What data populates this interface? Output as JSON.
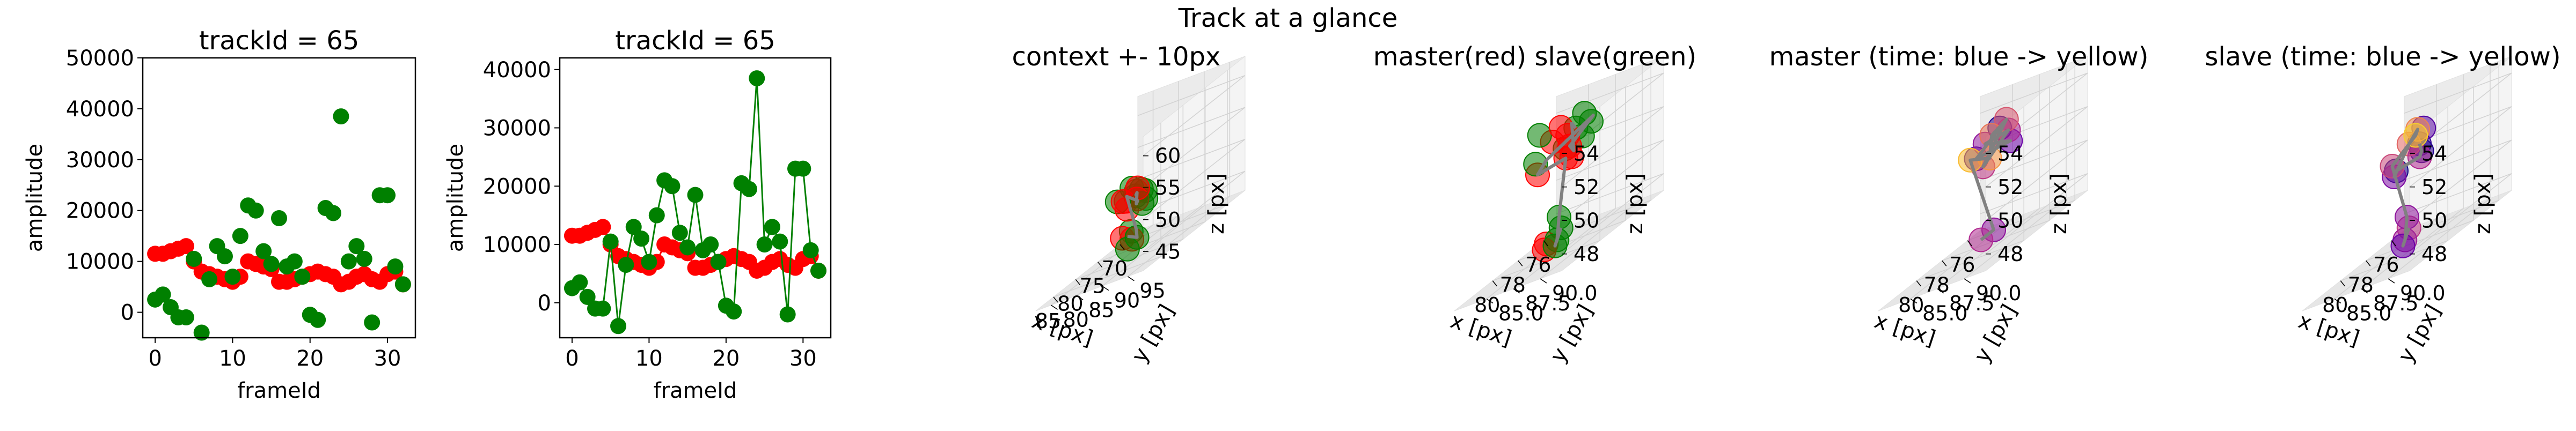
{
  "figure": {
    "suptitle": "Track at a glance"
  },
  "colors": {
    "master": "#ff0000",
    "slave": "#008000",
    "track_line": "#808080",
    "grid": "#d0d0d0",
    "pane": "#f2f2f2"
  },
  "chart_data": [
    {
      "type": "scatter",
      "title": "trackId = 65",
      "xlabel": "frameId",
      "ylabel": "amplitude",
      "xlim": [
        -1.6,
        33.6
      ],
      "ylim": [
        -5000,
        50000
      ],
      "xticks": [
        0,
        10,
        20,
        30
      ],
      "yticks": [
        0,
        10000,
        20000,
        30000,
        40000,
        50000
      ],
      "x": [
        0,
        1,
        2,
        3,
        4,
        5,
        6,
        7,
        8,
        9,
        10,
        11,
        12,
        13,
        14,
        15,
        16,
        17,
        18,
        19,
        20,
        21,
        22,
        23,
        24,
        25,
        26,
        27,
        28,
        29,
        30,
        31,
        32
      ],
      "series": [
        {
          "color": "#ff0000",
          "line": false,
          "values": [
            11500,
            11500,
            12000,
            12500,
            13000,
            10000,
            8000,
            7500,
            7000,
            6500,
            6000,
            7000,
            10000,
            9500,
            9000,
            8500,
            6000,
            6000,
            6500,
            7000,
            7500,
            8000,
            7500,
            7000,
            5500,
            6000,
            7000,
            7500,
            6500,
            6000,
            7500,
            8000,
            5500
          ]
        },
        {
          "color": "#008000",
          "line": false,
          "values": [
            2500,
            3500,
            1000,
            -1000,
            -1000,
            10500,
            -4000,
            6500,
            13000,
            11000,
            7000,
            15000,
            21000,
            20000,
            12000,
            9500,
            18500,
            9000,
            10000,
            7000,
            -500,
            -1500,
            20500,
            19500,
            38500,
            10000,
            13000,
            10500,
            -2000,
            23000,
            23000,
            9000,
            5500
          ]
        }
      ]
    },
    {
      "type": "line",
      "title": "trackId = 65",
      "xlabel": "frameId",
      "ylabel": "amplitude",
      "xlim": [
        -1.6,
        33.6
      ],
      "ylim": [
        -6000,
        42000
      ],
      "xticks": [
        0,
        10,
        20,
        30
      ],
      "yticks": [
        0,
        10000,
        20000,
        30000,
        40000
      ],
      "x": [
        0,
        1,
        2,
        3,
        4,
        5,
        6,
        7,
        8,
        9,
        10,
        11,
        12,
        13,
        14,
        15,
        16,
        17,
        18,
        19,
        20,
        21,
        22,
        23,
        24,
        25,
        26,
        27,
        28,
        29,
        30,
        31,
        32
      ],
      "series": [
        {
          "color": "#ff0000",
          "line": true,
          "values": [
            11500,
            11500,
            12000,
            12500,
            13000,
            10000,
            8000,
            7500,
            7000,
            6500,
            6000,
            7000,
            10000,
            9500,
            9000,
            8500,
            6000,
            6000,
            6500,
            7000,
            7500,
            8000,
            7500,
            7000,
            5500,
            6000,
            7000,
            7500,
            6500,
            6000,
            7500,
            8000,
            5500
          ]
        },
        {
          "color": "#008000",
          "line": true,
          "values": [
            2500,
            3500,
            1000,
            -1000,
            -1000,
            10500,
            -4000,
            6500,
            13000,
            11000,
            7000,
            15000,
            21000,
            20000,
            12000,
            9500,
            18500,
            9000,
            10000,
            7000,
            -500,
            -1500,
            20500,
            19500,
            38500,
            10000,
            13000,
            10500,
            -2000,
            23000,
            23000,
            9000,
            5500
          ]
        }
      ]
    },
    {
      "type": "scatter3d",
      "title": "context +- 10px",
      "xlabel": "x [px]",
      "ylabel": "y [px]",
      "zlabel": "z [px]",
      "xlim": [
        66,
        89
      ],
      "ylim": [
        77,
        98
      ],
      "zlim": [
        42,
        63
      ],
      "xticks": [
        "70",
        "75",
        "80",
        "85"
      ],
      "xtick_values": [
        70,
        75,
        80,
        85
      ],
      "yticks": [
        "80",
        "85",
        "90",
        "95"
      ],
      "ytick_values": [
        80,
        85,
        90,
        95
      ],
      "zticks": [
        "45",
        "50",
        "55",
        "60"
      ],
      "ztick_values": [
        45,
        50,
        55,
        60
      ],
      "points": [
        {
          "x": 79,
          "y": 88,
          "z": 52,
          "c": "#ff0000"
        },
        {
          "x": 80,
          "y": 89,
          "z": 51,
          "c": "#ff0000"
        },
        {
          "x": 81,
          "y": 90,
          "z": 53,
          "c": "#ff0000"
        },
        {
          "x": 80,
          "y": 87,
          "z": 50,
          "c": "#ff0000"
        },
        {
          "x": 82,
          "y": 88,
          "z": 52,
          "c": "#ff0000"
        },
        {
          "x": 79,
          "y": 86,
          "z": 51,
          "c": "#ff0000"
        },
        {
          "x": 81,
          "y": 87,
          "z": 46,
          "c": "#ff0000"
        },
        {
          "x": 80,
          "y": 88,
          "z": 45,
          "c": "#ff0000"
        },
        {
          "x": 78,
          "y": 87,
          "z": 51,
          "c": "#008000"
        },
        {
          "x": 79,
          "y": 89,
          "z": 52,
          "c": "#008000"
        },
        {
          "x": 80,
          "y": 90,
          "z": 50,
          "c": "#008000"
        },
        {
          "x": 77,
          "y": 88,
          "z": 51,
          "c": "#008000"
        },
        {
          "x": 81,
          "y": 86,
          "z": 52,
          "c": "#008000"
        },
        {
          "x": 80,
          "y": 88,
          "z": 53,
          "c": "#008000"
        },
        {
          "x": 79,
          "y": 87,
          "z": 46,
          "c": "#008000"
        },
        {
          "x": 80,
          "y": 89,
          "z": 45,
          "c": "#008000"
        },
        {
          "x": 81,
          "y": 88,
          "z": 44,
          "c": "#008000"
        },
        {
          "x": 78,
          "y": 89,
          "z": 50,
          "c": "#008000"
        }
      ],
      "path": [
        [
          78,
          87,
          51
        ],
        [
          80,
          89,
          52
        ],
        [
          79,
          88,
          50
        ],
        [
          81,
          90,
          51
        ],
        [
          80,
          87,
          52
        ],
        [
          79,
          88,
          46
        ],
        [
          80,
          89,
          45
        ],
        [
          81,
          88,
          46
        ]
      ]
    },
    {
      "type": "scatter3d",
      "title": "master(red) slave(green)",
      "xlabel": "x [px]",
      "ylabel": "y [px]",
      "zlabel": "z [px]",
      "xlim": [
        75,
        83
      ],
      "ylim": [
        82,
        92
      ],
      "zlim": [
        47,
        55
      ],
      "xticks": [
        "76",
        "78",
        "80"
      ],
      "xtick_values": [
        76,
        78,
        80
      ],
      "yticks": [
        "85.0",
        "87.5",
        "90.0"
      ],
      "ytick_values": [
        85,
        87.5,
        90
      ],
      "zticks": [
        "48",
        "50",
        "52",
        "54"
      ],
      "ztick_values": [
        48,
        50,
        52,
        54
      ],
      "points": [
        {
          "x": 77,
          "y": 84,
          "z": 53,
          "c": "#ff0000"
        },
        {
          "x": 78,
          "y": 86,
          "z": 54,
          "c": "#ff0000"
        },
        {
          "x": 79,
          "y": 88,
          "z": 53,
          "c": "#ff0000"
        },
        {
          "x": 80,
          "y": 89,
          "z": 54,
          "c": "#ff0000"
        },
        {
          "x": 78,
          "y": 87,
          "z": 52,
          "c": "#ff0000"
        },
        {
          "x": 81,
          "y": 90,
          "z": 53,
          "c": "#ff0000"
        },
        {
          "x": 79,
          "y": 85,
          "z": 52,
          "c": "#ff0000"
        },
        {
          "x": 80,
          "y": 87,
          "z": 48,
          "c": "#ff0000"
        },
        {
          "x": 81,
          "y": 88,
          "z": 48,
          "c": "#ff0000"
        },
        {
          "x": 76,
          "y": 85,
          "z": 53,
          "c": "#008000"
        },
        {
          "x": 77,
          "y": 87,
          "z": 54,
          "c": "#008000"
        },
        {
          "x": 78,
          "y": 88,
          "z": 53,
          "c": "#008000"
        },
        {
          "x": 79,
          "y": 90,
          "z": 54,
          "c": "#008000"
        },
        {
          "x": 76,
          "y": 84,
          "z": 52,
          "c": "#008000"
        },
        {
          "x": 80,
          "y": 86,
          "z": 53,
          "c": "#008000"
        },
        {
          "x": 78,
          "y": 84,
          "z": 54,
          "c": "#008000"
        },
        {
          "x": 79,
          "y": 87,
          "z": 49,
          "c": "#008000"
        },
        {
          "x": 80,
          "y": 88,
          "z": 48,
          "c": "#008000"
        },
        {
          "x": 81,
          "y": 89,
          "z": 48,
          "c": "#008000"
        },
        {
          "x": 78,
          "y": 86,
          "z": 48,
          "c": "#008000"
        }
      ],
      "path": [
        [
          76,
          85,
          53
        ],
        [
          78,
          87,
          54
        ],
        [
          77,
          86,
          52
        ],
        [
          79,
          88,
          53
        ],
        [
          78,
          89,
          54
        ],
        [
          80,
          87,
          53
        ],
        [
          79,
          85,
          52
        ],
        [
          81,
          90,
          53
        ],
        [
          79,
          87,
          49
        ],
        [
          80,
          88,
          48
        ],
        [
          81,
          89,
          48
        ],
        [
          78,
          86,
          48
        ]
      ]
    },
    {
      "type": "scatter3d",
      "title": "master (time: blue -> yellow)",
      "xlabel": "x [px]",
      "ylabel": "y [px]",
      "zlabel": "z [px]",
      "xlim": [
        75,
        83
      ],
      "ylim": [
        82,
        92
      ],
      "zlim": [
        47,
        55
      ],
      "xticks": [
        "76",
        "78",
        "80"
      ],
      "xtick_values": [
        76,
        78,
        80
      ],
      "yticks": [
        "85.0",
        "87.5",
        "90.0"
      ],
      "ytick_values": [
        85,
        87.5,
        90
      ],
      "zticks": [
        "48",
        "50",
        "52",
        "54"
      ],
      "ztick_values": [
        48,
        50,
        52,
        54
      ],
      "colormap": [
        "#0d0887",
        "#6a00a8",
        "#b12a90",
        "#e16462",
        "#fca636",
        "#f0f921"
      ],
      "points": [
        {
          "x": 76,
          "y": 85,
          "z": 53,
          "t": 0.05
        },
        {
          "x": 77,
          "y": 84,
          "z": 52,
          "t": 0.12
        },
        {
          "x": 76,
          "y": 86,
          "z": 52,
          "t": 0.2
        },
        {
          "x": 78,
          "y": 86,
          "z": 53,
          "t": 0.3
        },
        {
          "x": 77,
          "y": 87,
          "z": 53,
          "t": 0.38
        },
        {
          "x": 79,
          "y": 87,
          "z": 52,
          "t": 0.45
        },
        {
          "x": 78,
          "y": 88,
          "z": 54,
          "t": 0.55
        },
        {
          "x": 80,
          "y": 89,
          "z": 54,
          "t": 0.65
        },
        {
          "x": 81,
          "y": 90,
          "z": 53,
          "t": 0.75
        },
        {
          "x": 80,
          "y": 87,
          "z": 53,
          "t": 0.85
        },
        {
          "x": 79,
          "y": 88,
          "z": 48,
          "t": 0.3
        },
        {
          "x": 80,
          "y": 88,
          "z": 48,
          "t": 0.4
        }
      ],
      "path": [
        [
          76,
          85,
          53
        ],
        [
          77,
          84,
          52
        ],
        [
          76,
          86,
          52
        ],
        [
          78,
          86,
          53
        ],
        [
          77,
          87,
          53
        ],
        [
          79,
          87,
          52
        ],
        [
          78,
          88,
          54
        ],
        [
          80,
          89,
          54
        ],
        [
          81,
          90,
          53
        ],
        [
          80,
          87,
          53
        ],
        [
          79,
          88,
          48
        ],
        [
          80,
          88,
          48
        ]
      ]
    },
    {
      "type": "scatter3d",
      "title": "slave (time: blue -> yellow)",
      "xlabel": "x [px]",
      "ylabel": "y [px]",
      "zlabel": "z [px]",
      "xlim": [
        75,
        83
      ],
      "ylim": [
        82,
        92
      ],
      "zlim": [
        47,
        55
      ],
      "xticks": [
        "76",
        "78",
        "80"
      ],
      "xtick_values": [
        76,
        78,
        80
      ],
      "yticks": [
        "85.0",
        "87.5",
        "90.0"
      ],
      "ytick_values": [
        85,
        87.5,
        90
      ],
      "zticks": [
        "48",
        "50",
        "52",
        "54"
      ],
      "ztick_values": [
        48,
        50,
        52,
        54
      ],
      "colormap": [
        "#0d0887",
        "#6a00a8",
        "#b12a90",
        "#e16462",
        "#fca636",
        "#f0f921"
      ],
      "points": [
        {
          "x": 75.5,
          "y": 84,
          "z": 52,
          "t": 0.08
        },
        {
          "x": 76,
          "y": 85,
          "z": 53,
          "t": 0.15
        },
        {
          "x": 77,
          "y": 86,
          "z": 52,
          "t": 0.05
        },
        {
          "x": 78,
          "y": 86,
          "z": 53,
          "t": 0.6
        },
        {
          "x": 78,
          "y": 87,
          "z": 52,
          "t": 0.4
        },
        {
          "x": 79,
          "y": 88,
          "z": 54,
          "t": 0.7
        },
        {
          "x": 80,
          "y": 89,
          "z": 54,
          "t": 0.9
        },
        {
          "x": 79,
          "y": 86,
          "z": 52,
          "t": 0.02
        },
        {
          "x": 80,
          "y": 87,
          "z": 52,
          "t": 0.25
        },
        {
          "x": 81,
          "y": 88,
          "z": 53,
          "t": 0.5
        },
        {
          "x": 79,
          "y": 87,
          "z": 49,
          "t": 0.3
        },
        {
          "x": 80,
          "y": 88,
          "z": 48,
          "t": 0.35
        },
        {
          "x": 81,
          "y": 89,
          "z": 48,
          "t": 0.2
        },
        {
          "x": 78,
          "y": 86,
          "z": 48,
          "t": 0.45
        }
      ],
      "path": [
        [
          75.5,
          84,
          52
        ],
        [
          77,
          86,
          52
        ],
        [
          78,
          87,
          52
        ],
        [
          79,
          86,
          52
        ],
        [
          80,
          87,
          52
        ],
        [
          78,
          86,
          53
        ],
        [
          79,
          88,
          54
        ],
        [
          80,
          89,
          54
        ],
        [
          81,
          88,
          53
        ],
        [
          79,
          87,
          49
        ],
        [
          80,
          88,
          48
        ],
        [
          81,
          89,
          48
        ],
        [
          78,
          86,
          48
        ]
      ]
    }
  ]
}
